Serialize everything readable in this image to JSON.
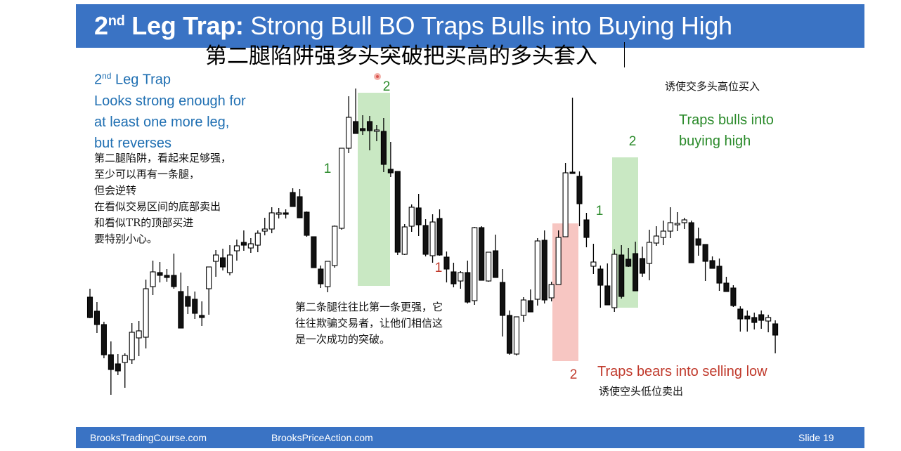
{
  "header": {
    "title_bold": "2nd Leg Trap:",
    "title_bold_main": "2",
    "title_bold_sup": "nd",
    "title_bold_rest": " Leg Trap:",
    "title_rest": " Strong Bull BO Traps Bulls into Buying High",
    "title_cn": "第二腿陷阱强多头突破把买高的多头套入"
  },
  "left_note": {
    "lines_en": [
      "2nd Leg Trap",
      "Looks strong enough for",
      "at least one more leg,",
      "but reverses"
    ],
    "line1_main": "2",
    "line1_sup": "nd",
    "line1_rest": " Leg Trap",
    "lines_cn": [
      "第二腿陷阱，看起来足够强，",
      "至少可以再有一条腿，",
      "但会逆转",
      "在看似交易区间的底部卖出",
      "和看似TR的顶部买进",
      "要特别小心。"
    ]
  },
  "middle_note_cn": [
    "第二条腿往往比第一条更强，它",
    "往往欺骗交易者，让他们相信这",
    "是一次成功的突破。"
  ],
  "right_note": {
    "cn_top": "诱使交多头高位买入",
    "en": [
      "Traps bulls into",
      "buying high"
    ],
    "bears_en": "Traps bears into selling low",
    "bears_cn": "诱使空头低位卖出"
  },
  "leg_labels": {
    "g1_left": "1",
    "g2_left": "2",
    "r1": "1",
    "r2": "2",
    "g1_right": "1",
    "g2_right": "2"
  },
  "colors": {
    "header_blue": "#3a73c4",
    "bull_zone": "#c9e8c3",
    "bear_zone": "#f7c6c2",
    "label_green": "#2a8a2a",
    "label_red": "#c0392b",
    "note_blue": "#1f6fb2"
  },
  "footer": {
    "left": "BrooksTradingCourse.com",
    "center": "BrooksPriceAction.com",
    "right": "Slide  19"
  },
  "chart_data": {
    "type": "candlestick",
    "bars": [
      {
        "o": 417,
        "h": 447,
        "l": 405,
        "c": 446
      },
      {
        "o": 437,
        "h": 468,
        "l": 424,
        "c": 456
      },
      {
        "o": 456,
        "h": 504,
        "l": 452,
        "c": 499
      },
      {
        "o": 499,
        "h": 556,
        "l": 480,
        "c": 520
      },
      {
        "o": 512,
        "h": 528,
        "l": 498,
        "c": 522
      },
      {
        "o": 510,
        "h": 546,
        "l": 497,
        "c": 500
      },
      {
        "o": 506,
        "h": 512,
        "l": 454,
        "c": 467
      },
      {
        "o": 475,
        "h": 501,
        "l": 451,
        "c": 465
      },
      {
        "o": 474,
        "h": 490,
        "l": 392,
        "c": 405
      },
      {
        "o": 402,
        "h": 414,
        "l": 365,
        "c": 381
      },
      {
        "o": 382,
        "h": 396,
        "l": 367,
        "c": 386
      },
      {
        "o": 386,
        "h": 395,
        "l": 377,
        "c": 389
      },
      {
        "o": 386,
        "h": 405,
        "l": 355,
        "c": 402
      },
      {
        "o": 409,
        "h": 431,
        "l": 382,
        "c": 461
      },
      {
        "o": 416,
        "h": 441,
        "l": 401,
        "c": 430
      },
      {
        "o": 420,
        "h": 448,
        "l": 409,
        "c": 440
      },
      {
        "o": 443,
        "h": 458,
        "l": 423,
        "c": 446
      },
      {
        "o": 405,
        "h": 442,
        "l": 376,
        "c": 374
      },
      {
        "o": 366,
        "h": 388,
        "l": 350,
        "c": 357
      },
      {
        "o": 361,
        "h": 379,
        "l": 348,
        "c": 374
      },
      {
        "o": 382,
        "h": 386,
        "l": 343,
        "c": 357
      },
      {
        "o": 351,
        "h": 365,
        "l": 335,
        "c": 344
      },
      {
        "o": 339,
        "h": 351,
        "l": 322,
        "c": 343
      },
      {
        "o": 347,
        "h": 354,
        "l": 333,
        "c": 341
      },
      {
        "o": 343,
        "h": 353,
        "l": 322,
        "c": 326
      },
      {
        "o": 323,
        "h": 329,
        "l": 304,
        "c": 320
      },
      {
        "o": 320,
        "h": 326,
        "l": 289,
        "c": 297
      },
      {
        "o": 298,
        "h": 305,
        "l": 290,
        "c": 297
      },
      {
        "o": 297,
        "h": 305,
        "l": 292,
        "c": 297
      },
      {
        "o": 268,
        "h": 281,
        "l": 262,
        "c": 288
      },
      {
        "o": 274,
        "h": 301,
        "l": 263,
        "c": 304
      },
      {
        "o": 296,
        "h": 331,
        "l": 295,
        "c": 329
      },
      {
        "o": 331,
        "h": 371,
        "l": 331,
        "c": 375
      },
      {
        "o": 377,
        "h": 404,
        "l": 372,
        "c": 398
      },
      {
        "o": 402,
        "h": 410,
        "l": 370,
        "c": 366
      },
      {
        "o": 372,
        "h": 375,
        "l": 315,
        "c": 316
      },
      {
        "o": 319,
        "h": 321,
        "l": 207,
        "c": 205
      },
      {
        "o": 205,
        "h": 212,
        "l": 131,
        "c": 161
      },
      {
        "o": 167,
        "h": 181,
        "l": 120,
        "c": 184
      },
      {
        "o": 177,
        "h": 186,
        "l": 158,
        "c": 180
      },
      {
        "o": 167,
        "h": 208,
        "l": 159,
        "c": 180
      },
      {
        "o": 181,
        "h": 195,
        "l": 172,
        "c": 179
      },
      {
        "o": 181,
        "h": 239,
        "l": 162,
        "c": 228
      },
      {
        "o": 235,
        "h": 246,
        "l": 196,
        "c": 240
      },
      {
        "o": 238,
        "h": 357,
        "l": 240,
        "c": 353
      },
      {
        "o": 356,
        "h": 357,
        "l": 313,
        "c": 317
      },
      {
        "o": 316,
        "h": 324,
        "l": 285,
        "c": 289
      },
      {
        "o": 290,
        "h": 330,
        "l": 270,
        "c": 314
      },
      {
        "o": 315,
        "h": 359,
        "l": 306,
        "c": 356
      },
      {
        "o": 358,
        "h": 368,
        "l": 299,
        "c": 310
      },
      {
        "o": 305,
        "h": 358,
        "l": 292,
        "c": 357
      },
      {
        "o": 360,
        "h": 396,
        "l": 352,
        "c": 377
      },
      {
        "o": 381,
        "h": 403,
        "l": 368,
        "c": 398
      },
      {
        "o": 394,
        "h": 405,
        "l": 380,
        "c": 382
      },
      {
        "o": 382,
        "h": 426,
        "l": 365,
        "c": 424
      },
      {
        "o": 422,
        "h": 428,
        "l": 317,
        "c": 318
      },
      {
        "o": 318,
        "h": 365,
        "l": 316,
        "c": 393
      },
      {
        "o": 394,
        "h": 395,
        "l": 357,
        "c": 353
      },
      {
        "o": 351,
        "h": 388,
        "l": 328,
        "c": 389
      },
      {
        "o": 396,
        "h": 473,
        "l": 377,
        "c": 443
      },
      {
        "o": 443,
        "h": 499,
        "l": 436,
        "c": 497
      },
      {
        "o": 498,
        "h": 500,
        "l": 446,
        "c": 445
      },
      {
        "o": 443,
        "h": 452,
        "l": 417,
        "c": 421
      },
      {
        "o": 422,
        "h": 437,
        "l": 406,
        "c": 438
      },
      {
        "o": 420,
        "h": 429,
        "l": 333,
        "c": 337
      },
      {
        "o": 336,
        "h": 426,
        "l": 322,
        "c": 421
      },
      {
        "o": 418,
        "h": 423,
        "l": 395,
        "c": 399
      },
      {
        "o": 399,
        "h": 395,
        "l": 322,
        "c": 332
      },
      {
        "o": 331,
        "h": 323,
        "l": 226,
        "c": 240
      },
      {
        "o": 239,
        "h": 229,
        "l": 133,
        "c": 241
      },
      {
        "o": 245,
        "h": 316,
        "l": 238,
        "c": 284
      },
      {
        "o": 307,
        "h": 346,
        "l": 297,
        "c": 332
      },
      {
        "o": 373,
        "h": 384,
        "l": 341,
        "c": 367
      },
      {
        "o": 377,
        "h": 432,
        "l": 372,
        "c": 400
      },
      {
        "o": 401,
        "h": 424,
        "l": 369,
        "c": 428
      },
      {
        "o": 432,
        "h": 438,
        "l": 349,
        "c": 356
      },
      {
        "o": 357,
        "h": 419,
        "l": 343,
        "c": 416
      },
      {
        "o": 363,
        "h": 374,
        "l": 347,
        "c": 373
      },
      {
        "o": 355,
        "h": 379,
        "l": 338,
        "c": 408
      },
      {
        "o": 362,
        "h": 388,
        "l": 345,
        "c": 383
      },
      {
        "o": 369,
        "h": 393,
        "l": 321,
        "c": 339
      },
      {
        "o": 340,
        "h": 344,
        "l": 316,
        "c": 330
      },
      {
        "o": 332,
        "h": 343,
        "l": 308,
        "c": 323
      },
      {
        "o": 323,
        "h": 333,
        "l": 289,
        "c": 311
      },
      {
        "o": 314,
        "h": 323,
        "l": 296,
        "c": 312
      },
      {
        "o": 311,
        "h": 320,
        "l": 304,
        "c": 307
      },
      {
        "o": 311,
        "h": 358,
        "l": 308,
        "c": 368
      },
      {
        "o": 334,
        "h": 358,
        "l": 318,
        "c": 343
      },
      {
        "o": 342,
        "h": 394,
        "l": 343,
        "c": 366
      },
      {
        "o": 365,
        "h": 370,
        "l": 359,
        "c": 376
      },
      {
        "o": 373,
        "h": 408,
        "l": 362,
        "c": 397
      },
      {
        "o": 397,
        "h": 408,
        "l": 388,
        "c": 409
      },
      {
        "o": 404,
        "h": 431,
        "l": 400,
        "c": 429
      },
      {
        "o": 434,
        "h": 466,
        "l": 430,
        "c": 448
      },
      {
        "o": 444,
        "h": 466,
        "l": 436,
        "c": 448
      },
      {
        "o": 446,
        "h": 463,
        "l": 439,
        "c": 453
      },
      {
        "o": 442,
        "h": 462,
        "l": 436,
        "c": 450
      },
      {
        "o": 451,
        "h": 467,
        "l": 442,
        "c": 446
      },
      {
        "o": 455,
        "h": 497,
        "l": 450,
        "c": 471
      }
    ],
    "zones": [
      {
        "color": "bull",
        "x0": 401,
        "x1": 447,
        "y0": 126,
        "y1": 401
      },
      {
        "color": "bear",
        "x0": 678,
        "x1": 715,
        "y0": 312,
        "y1": 508
      },
      {
        "color": "bull",
        "x0": 763,
        "x1": 800,
        "y0": 218,
        "y1": 432
      }
    ]
  }
}
